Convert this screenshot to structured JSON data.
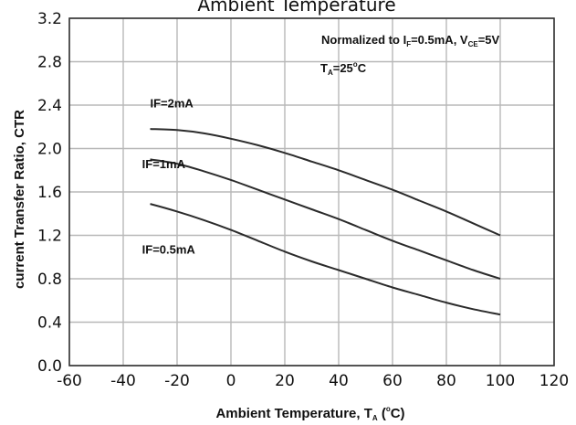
{
  "page": {
    "title": "Ambient Temperature"
  },
  "chart_data": {
    "type": "line",
    "xlim": [
      -60,
      120
    ],
    "ylim": [
      0.0,
      3.2
    ],
    "x_ticks": [
      -60,
      -40,
      -20,
      0,
      20,
      40,
      60,
      80,
      100,
      120
    ],
    "x_tick_labels": [
      "-60",
      "-40",
      "-20",
      "0",
      "20",
      "40",
      "60",
      "80",
      "100",
      "120"
    ],
    "y_ticks": [
      0.0,
      0.4,
      0.8,
      1.2,
      1.6,
      2.0,
      2.4,
      2.8,
      3.2
    ],
    "y_tick_labels": [
      "0.0",
      "0.4",
      "0.8",
      "1.2",
      "1.6",
      "2.0",
      "2.4",
      "2.8",
      "3.2"
    ],
    "grid": true,
    "xlabel": {
      "text": "Ambient Temperature, T",
      "sub": "A",
      "paren_open": " (",
      "sup": "o",
      "unit": "C)"
    },
    "ylabel": "current Transfer Ratio, CTR",
    "annotations": {
      "normalized": {
        "prefix": "Normalized to I",
        "sub1": "F",
        "mid": "=0.5mA, V",
        "sub2": "CE",
        "suffix": "=5V"
      },
      "ta": {
        "prefix": "T",
        "sub": "A",
        "eq": "=25",
        "sup": "o",
        "suffix": "C"
      }
    },
    "series": [
      {
        "name": "IF=2mA",
        "label_at": [
          -30,
          2.38
        ],
        "x": [
          -30,
          -20,
          -10,
          0,
          10,
          20,
          30,
          40,
          50,
          60,
          70,
          80,
          90,
          100
        ],
        "y": [
          2.18,
          2.17,
          2.14,
          2.09,
          2.03,
          1.96,
          1.88,
          1.8,
          1.71,
          1.62,
          1.52,
          1.42,
          1.31,
          1.2
        ]
      },
      {
        "name": "IF=1mA",
        "label_at": [
          -33,
          1.82
        ],
        "x": [
          -30,
          -20,
          -10,
          0,
          10,
          20,
          30,
          40,
          50,
          60,
          70,
          80,
          90,
          100
        ],
        "y": [
          1.9,
          1.86,
          1.79,
          1.71,
          1.62,
          1.53,
          1.44,
          1.35,
          1.25,
          1.15,
          1.06,
          0.97,
          0.88,
          0.8
        ]
      },
      {
        "name": "IF=0.5mA",
        "label_at": [
          -33,
          1.03
        ],
        "x": [
          -30,
          -20,
          -10,
          0,
          10,
          20,
          30,
          40,
          50,
          60,
          70,
          80,
          90,
          100
        ],
        "y": [
          1.49,
          1.42,
          1.34,
          1.25,
          1.15,
          1.05,
          0.96,
          0.88,
          0.8,
          0.72,
          0.65,
          0.58,
          0.52,
          0.47
        ]
      }
    ],
    "colors": {
      "line": "#2b2b2b",
      "grid": "#b8b8b8",
      "frame": "#333333"
    }
  }
}
